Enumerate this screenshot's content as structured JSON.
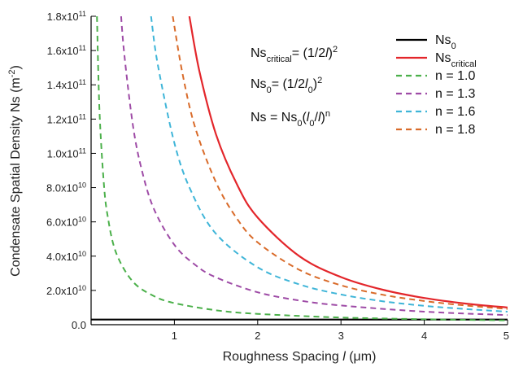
{
  "chart_data": {
    "type": "line",
    "xlabel_prefix": "Roughness Spacing ",
    "xlabel_var": "l",
    "xlabel_unit": " (μm)",
    "ylabel": "Condensate Spatial Density Ns (m",
    "ylabel_sup": "-2",
    "ylabel_close": ")",
    "xlim": [
      0.0,
      5.0
    ],
    "ylim": [
      0,
      180000000000.0
    ],
    "x_ticks": [
      1,
      2,
      3,
      4,
      5
    ],
    "x_tick_labels": [
      "1",
      "2",
      "3",
      "4",
      "5"
    ],
    "y_ticks": [
      0,
      20000000000.0,
      40000000000.0,
      60000000000.0,
      80000000000.0,
      100000000000.0,
      120000000000.0,
      140000000000.0,
      160000000000.0,
      180000000000.0
    ],
    "y_tick_labels": [
      {
        "base": "0.0",
        "exp": ""
      },
      {
        "base": "2.0x10",
        "exp": "10"
      },
      {
        "base": "4.0x10",
        "exp": "10"
      },
      {
        "base": "6.0x10",
        "exp": "10"
      },
      {
        "base": "8.0x10",
        "exp": "10"
      },
      {
        "base": "1.0x10",
        "exp": "11"
      },
      {
        "base": "1.2x10",
        "exp": "11"
      },
      {
        "base": "1.4x10",
        "exp": "11"
      },
      {
        "base": "1.6x10",
        "exp": "11"
      },
      {
        "base": "1.8x10",
        "exp": "11"
      }
    ],
    "grid": false,
    "legend_position": "top-right",
    "series": [
      {
        "name": "Ns",
        "name_sub": "0",
        "color": "#000000",
        "style": "solid",
        "x": [
          0.0,
          5.0
        ],
        "y": [
          3000000000.0,
          3000000000.0
        ]
      },
      {
        "name": "Ns",
        "name_sub": "critical",
        "color": "#e3262b",
        "style": "solid",
        "x": [
          1.18,
          1.3,
          1.5,
          1.75,
          2.0,
          2.5,
          3.0,
          3.5,
          4.0,
          4.5,
          5.0
        ],
        "y": [
          180000000000.0,
          148000000000.0,
          111000000000.0,
          82000000000.0,
          62500000000.0,
          40000000000.0,
          27800000000.0,
          20400000000.0,
          15600000000.0,
          12300000000.0,
          10000000000.0
        ]
      },
      {
        "name": "n = 1.0",
        "color": "#4bb04a",
        "style": "dashed",
        "x": [
          0.07,
          0.1,
          0.15,
          0.2,
          0.3,
          0.5,
          0.75,
          1.0,
          1.5,
          2.0,
          3.0,
          4.0,
          5.0
        ],
        "y": [
          180000000000.0,
          126000000000.0,
          84000000000.0,
          63000000000.0,
          42000000000.0,
          25200000000.0,
          16800000000.0,
          12600000000.0,
          8400000000.0,
          6300000000.0,
          4200000000.0,
          3200000000.0,
          2500000000.0
        ]
      },
      {
        "name": "n = 1.3",
        "color": "#9e4ba6",
        "style": "dashed",
        "x": [
          0.36,
          0.4,
          0.5,
          0.6,
          0.75,
          1.0,
          1.25,
          1.5,
          2.0,
          2.5,
          3.0,
          4.0,
          5.0
        ],
        "y": [
          180000000000.0,
          157000000000.0,
          117000000000.0,
          92000000000.0,
          68000000000.0,
          46600000000.0,
          34900000000.0,
          27600000000.0,
          18900000000.0,
          14100000000.0,
          11200000000.0,
          7600000000.0,
          5600000000.0
        ]
      },
      {
        "name": "n = 1.6",
        "color": "#3fb5d8",
        "style": "dashed",
        "x": [
          0.72,
          0.8,
          1.0,
          1.2,
          1.5,
          2.0,
          2.5,
          3.0,
          3.5,
          4.0,
          4.5,
          5.0
        ],
        "y": [
          180000000000.0,
          152000000000.0,
          106000000000.0,
          78000000000.0,
          53000000000.0,
          33500000000.0,
          23500000000.0,
          17600000000.0,
          13700000000.0,
          11000000000.0,
          9100000000.0,
          7600000000.0
        ]
      },
      {
        "name": "n = 1.8",
        "color": "#d96b2a",
        "style": "dashed",
        "x": [
          0.98,
          1.1,
          1.25,
          1.5,
          1.75,
          2.0,
          2.5,
          3.0,
          3.5,
          4.0,
          4.5,
          5.0
        ],
        "y": [
          180000000000.0,
          146000000000.0,
          115000000000.0,
          83000000000.0,
          62000000000.0,
          48000000000.0,
          32000000000.0,
          23000000000.0,
          17500000000.0,
          13800000000.0,
          11200000000.0,
          9200000000.0
        ]
      }
    ],
    "annotations": [
      {
        "a": "Ns",
        "a_sub": "critical",
        "b": "= (1/2",
        "b_italic": "l",
        "c": ")",
        "sup": "2"
      },
      {
        "a": "Ns",
        "a_sub": "0",
        "b": "= (1/2",
        "b_italic": "l",
        "b_sub": "0",
        "c": ")",
        "sup": "2"
      },
      {
        "a": "Ns = Ns",
        "a_sub": "0",
        "b": "(",
        "b_italic": "l",
        "b_sub": "0",
        "c": "/",
        "c_italic": "l",
        "d": ")",
        "sup": "n"
      }
    ]
  }
}
